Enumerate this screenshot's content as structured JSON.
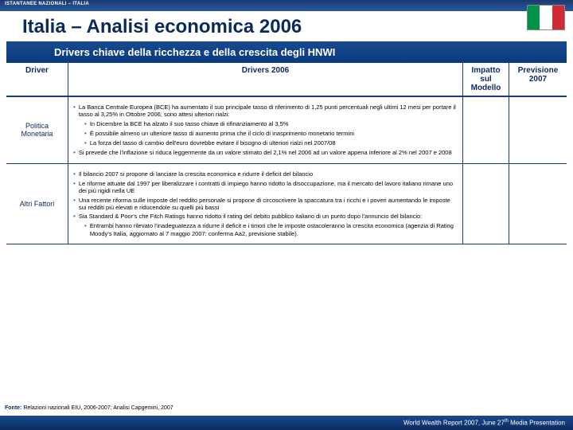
{
  "header_tag": "ISTANTANEE NAZIONALI – ITALIA",
  "title": "Italia – Analisi economica 2006",
  "subtitle": "Drivers chiave della ricchezza e della crescita degli HNWI",
  "columns": {
    "driver": "Driver",
    "body": "Drivers 2006",
    "impact": "Impatto sul Modello",
    "prev": "Previsione 2007"
  },
  "rows": [
    {
      "driver": "Politica Monetaria",
      "bullets": [
        {
          "level": 0,
          "text": "La Banca Centrale Europea (BCE) ha aumentato il suo principale tasso di riferimento di 1,25 punti percentuali negli ultimi 12 mesi per portare il tasso al 3,25% in Ottobre 2006; sono attesi ulteriori rialzi:"
        },
        {
          "level": 1,
          "text": "In Dicembre la BCE ha alzato il suo tasso chiave di rifinanziamento al 3,5%"
        },
        {
          "level": 1,
          "text": "È possibile almeno un ulteriore tasso di aumento prima che il ciclo di inasprimento monetario termini"
        },
        {
          "level": 1,
          "text": "La forza del tasso di cambio dell'euro dovrebbe evitare il bisogno di ulteriori rialzi nel 2007/08"
        },
        {
          "level": 0,
          "text": "Si prevede che l'inflazione si riduca leggermente da un valore stimato del 2,1% nel 2006 ad un valore appena inferiore al 2% nel 2007 e 2008"
        }
      ]
    },
    {
      "driver": "Altri Fattori",
      "bullets": [
        {
          "level": 0,
          "text": "Il bilancio 2007 si propone di lanciare la crescita economica e ridurre il deficit del bilancio"
        },
        {
          "level": 0,
          "text": "Le riforme attuate dal 1997 per liberalizzare i contratti di impiego hanno ridotto la disoccupazione, ma il mercato del lavoro italiano rimane uno dei più rigidi nella UE"
        },
        {
          "level": 0,
          "text": "Una recente riforma sulle imposte del reddito personale si propone di circoscrivere la spaccatura tra i ricchi e i poveri aumentando le imposte sui redditi più elevati e riducendole su quelli più bassi"
        },
        {
          "level": 0,
          "text": "Sia Standard & Poor's che Fitch Ratings hanno ridotto il rating del debito pubblico italiano di un punto dopo l'annuncio del bilancio:"
        },
        {
          "level": 1,
          "text": "Entrambi hanno rilevato l'inadeguatezza a ridurre il deficit e i timori che le imposte ostacoleranno la crescita economica (agenzia di Rating Moody's Italia, aggiornato al 7 maggio 2007: conferma Aa2, previsione stabile)."
        }
      ]
    }
  ],
  "source_label": "Fonte:",
  "source_text": "Relazioni nazionali EIU, 2006-2007; Analisi Capgemini, 2007",
  "footer_prefix": "World Wealth Report 2007, June 27",
  "footer_suffix": " Media Presentation",
  "footer_sup": "th"
}
